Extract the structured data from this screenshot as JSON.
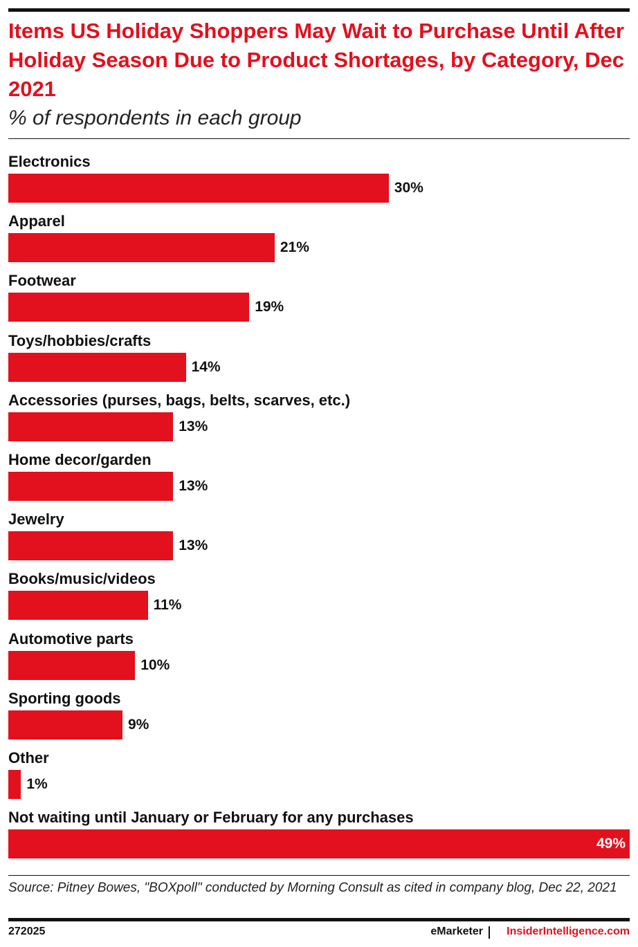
{
  "chart_data": {
    "type": "bar",
    "orientation": "horizontal",
    "title": "Items US Holiday Shoppers May Wait to Purchase Until After Holiday Season Due to Product Shortages, by Category, Dec 2021",
    "subtitle": "% of respondents in each group",
    "categories": [
      "Electronics",
      "Apparel",
      "Footwear",
      "Toys/hobbies/crafts",
      "Accessories (purses, bags, belts, scarves, etc.)",
      "Home decor/garden",
      "Jewelry",
      "Books/music/videos",
      "Automotive parts",
      "Sporting goods",
      "Other",
      "Not waiting until January or February for any purchases"
    ],
    "values": [
      30,
      21,
      19,
      14,
      13,
      13,
      13,
      11,
      10,
      9,
      1,
      49
    ],
    "value_labels": [
      "30%",
      "21%",
      "19%",
      "14%",
      "13%",
      "13%",
      "13%",
      "11%",
      "10%",
      "9%",
      "1%",
      "49%"
    ],
    "color": "#e3101d",
    "source": "Source: Pitney Bowes, \"BOXpoll\" conducted by Morning Consult as cited in company blog, Dec 22, 2021",
    "chart_id": "272025",
    "brand": "eMarketer",
    "site": "InsiderIntelligence.com"
  }
}
